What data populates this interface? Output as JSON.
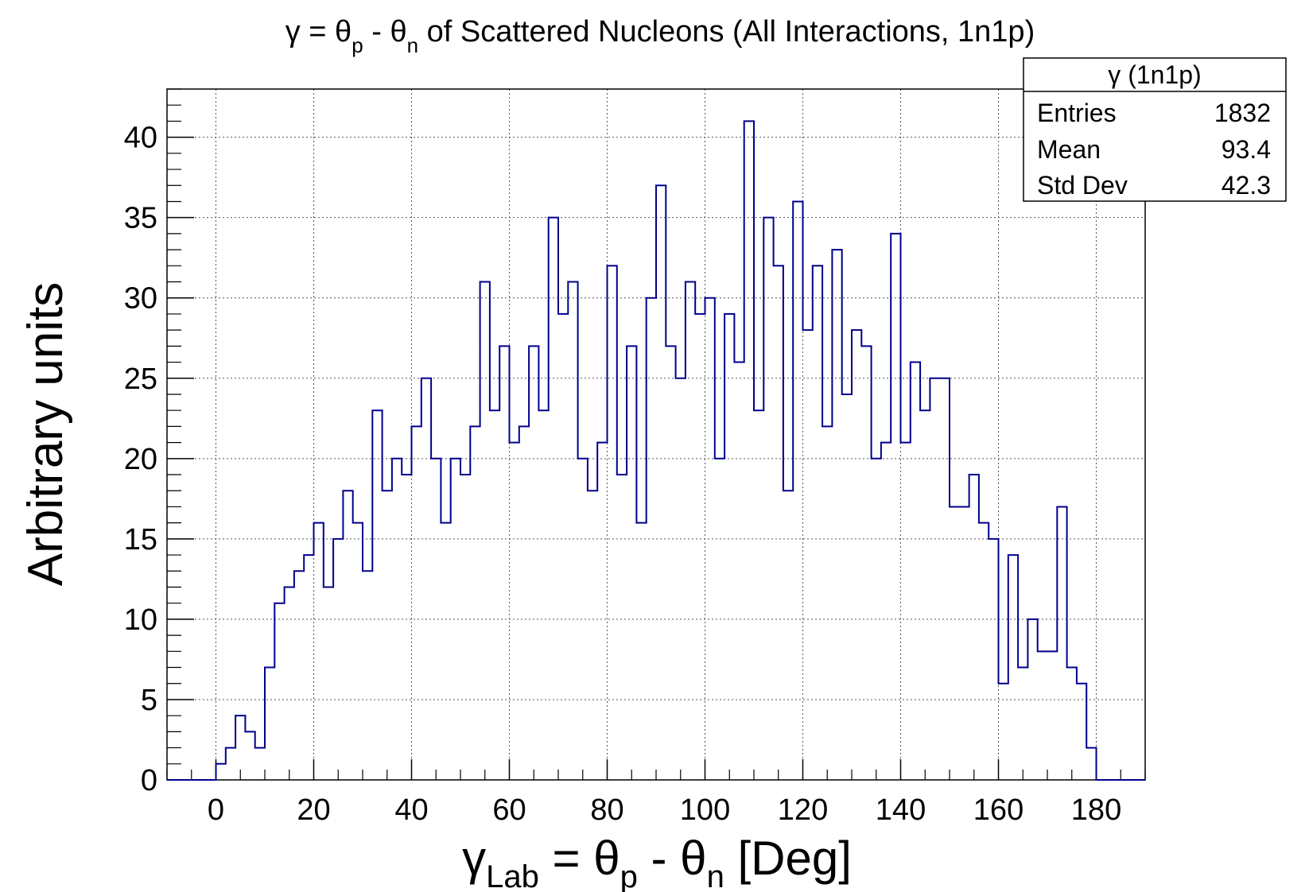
{
  "chart_data": {
    "type": "histogram",
    "title": {
      "gamma": "γ",
      "eq": " = θ",
      "sub_p": "p",
      "minus": " - θ",
      "sub_n": "n",
      "rest": " of Scattered Nucleons (All Interactions, 1n1p)"
    },
    "xlabel": {
      "gamma": "γ",
      "sub_lab": "Lab",
      "eq": " = θ",
      "sub_p": "p",
      "minus": " - θ",
      "sub_n": "n",
      "rest": " [Deg]"
    },
    "ylabel": "Arbitrary units",
    "xlim": [
      -10,
      190
    ],
    "ylim": [
      0,
      43
    ],
    "x_ticks": [
      0,
      20,
      40,
      60,
      80,
      100,
      120,
      140,
      160,
      180
    ],
    "y_ticks": [
      0,
      5,
      10,
      15,
      20,
      25,
      30,
      35,
      40
    ],
    "grid": true,
    "line_color": "#00008b",
    "bin_start": -10,
    "bin_width": 2,
    "values": [
      0,
      0,
      0,
      0,
      0,
      1,
      2,
      4,
      3,
      2,
      7,
      11,
      12,
      13,
      14,
      16,
      12,
      15,
      18,
      16,
      13,
      23,
      18,
      20,
      19,
      22,
      25,
      20,
      16,
      20,
      19,
      22,
      31,
      23,
      27,
      21,
      22,
      27,
      23,
      35,
      29,
      31,
      20,
      18,
      21,
      32,
      19,
      27,
      16,
      30,
      37,
      27,
      25,
      31,
      29,
      30,
      20,
      29,
      26,
      41,
      23,
      35,
      32,
      18,
      36,
      28,
      32,
      22,
      33,
      24,
      28,
      27,
      20,
      21,
      34,
      21,
      26,
      23,
      25,
      25,
      17,
      17,
      19,
      16,
      15,
      6,
      14,
      7,
      10,
      8,
      8,
      17,
      7,
      6,
      2,
      0,
      0,
      0,
      0,
      0
    ],
    "stats_box": {
      "title": "γ (1n1p)",
      "rows": [
        {
          "label": "Entries",
          "value": "1832"
        },
        {
          "label": "Mean",
          "value": "93.4"
        },
        {
          "label": "Std Dev",
          "value": "42.3"
        }
      ]
    }
  }
}
